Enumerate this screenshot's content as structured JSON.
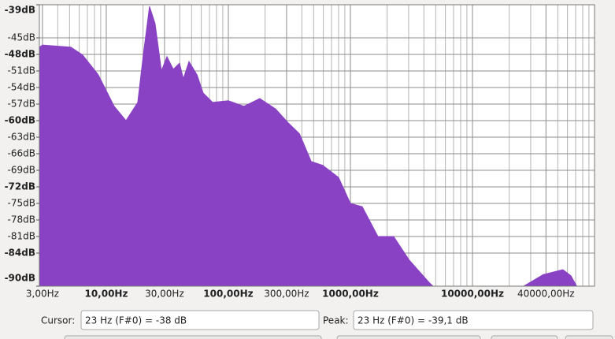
{
  "chart_data": {
    "type": "area",
    "x": [
      2.83,
      3,
      5.13,
      6.4,
      8.6,
      11.6,
      14.5,
      18.1,
      20.1,
      22.6,
      25.1,
      28.3,
      31.4,
      35.4,
      39.8,
      42.8,
      47.6,
      55.4,
      62.2,
      74.3,
      100,
      134,
      181,
      244,
      306,
      383,
      477,
      593,
      799,
      1000,
      1250,
      1680,
      2260,
      3040,
      4400,
      4750,
      26240,
      38000,
      55000,
      64000,
      71000
    ],
    "series": [
      {
        "color": "#8a42c4",
        "values": [
          -46.7,
          -46.3,
          -46.7,
          -48.1,
          -51.7,
          -57.4,
          -60,
          -56.7,
          -48.1,
          -39.3,
          -42.4,
          -51,
          -48.4,
          -50.7,
          -49.6,
          -52.4,
          -49.3,
          -51.7,
          -55,
          -56.7,
          -56.4,
          -57.4,
          -56,
          -57.9,
          -60.3,
          -62.4,
          -67.4,
          -68.1,
          -70.3,
          -75,
          -75.6,
          -81,
          -81,
          -85.3,
          -89.3,
          -90,
          -90,
          -87.9,
          -87,
          -88.1,
          -89.9
        ]
      }
    ],
    "xlim": [
      2.83,
      100000
    ],
    "log_x": true,
    "xticks": [
      {
        "value": 3,
        "label": "3,00Hz"
      },
      {
        "value": 10,
        "label": "10,00Hz"
      },
      {
        "value": 30,
        "label": "30,00Hz"
      },
      {
        "value": 100,
        "label": "100,00Hz"
      },
      {
        "value": 300,
        "label": "300,00Hz"
      },
      {
        "value": 1000,
        "label": "1000,00Hz"
      },
      {
        "value": 10000,
        "label": "10000,00Hz"
      },
      {
        "value": 40000,
        "label": "40000,00Hz"
      }
    ],
    "minor_xticks": [
      4,
      5,
      6,
      7,
      8,
      9,
      20,
      40,
      50,
      60,
      70,
      80,
      90,
      200,
      400,
      500,
      600,
      700,
      800,
      900,
      2000,
      3000,
      4000,
      5000,
      6000,
      7000,
      8000,
      9000,
      20000,
      30000,
      50000,
      60000,
      70000,
      80000,
      90000
    ],
    "ylim": [
      -90,
      -39
    ],
    "yticks": [
      {
        "value": -39,
        "label": "-39dB"
      },
      {
        "value": -45,
        "label": "-45dB"
      },
      {
        "value": -48,
        "label": "-48dB"
      },
      {
        "value": -51,
        "label": "-51dB"
      },
      {
        "value": -54,
        "label": "-54dB"
      },
      {
        "value": -57,
        "label": "-57dB"
      },
      {
        "value": -60,
        "label": "-60dB"
      },
      {
        "value": -63,
        "label": "-63dB"
      },
      {
        "value": -66,
        "label": "-66dB"
      },
      {
        "value": -69,
        "label": "-69dB"
      },
      {
        "value": -72,
        "label": "-72dB"
      },
      {
        "value": -75,
        "label": "-75dB"
      },
      {
        "value": -78,
        "label": "-78dB"
      },
      {
        "value": -81,
        "label": "-81dB"
      },
      {
        "value": -84,
        "label": "-84dB"
      },
      {
        "value": -90,
        "label": "-90dB"
      }
    ],
    "grid": true
  },
  "cursor": {
    "label": "Cursor:",
    "value": "23 Hz (F#0) = -38 dB"
  },
  "peak": {
    "label": "Peak:",
    "value": "23 Hz (F#0) = -39,1 dB"
  }
}
